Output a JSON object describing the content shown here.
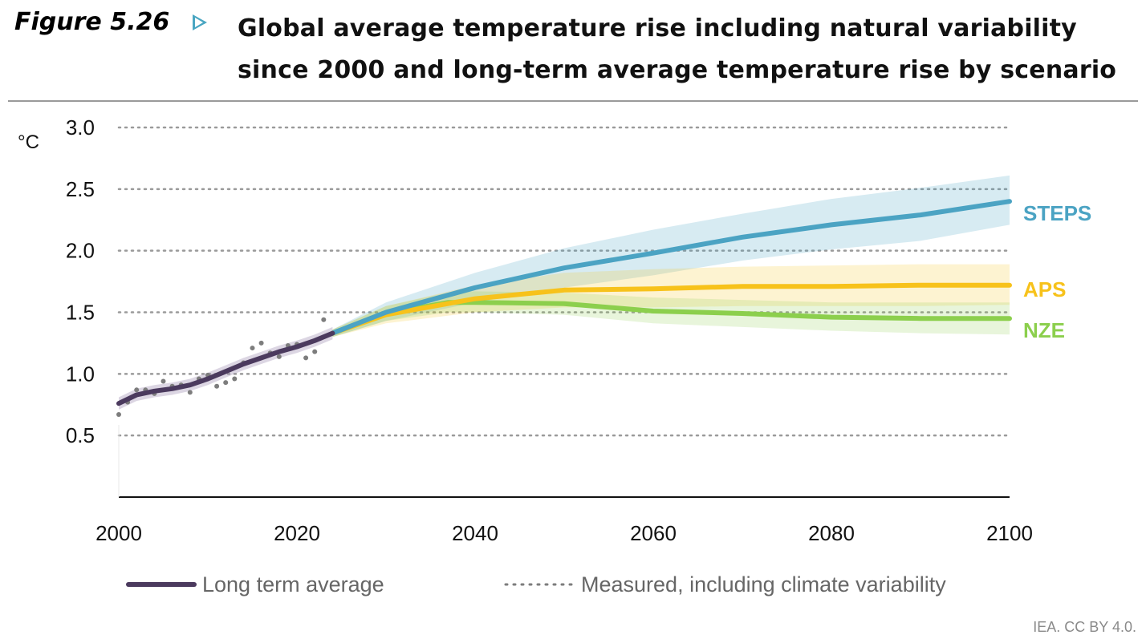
{
  "figure_label": "Figure 5.26",
  "title": "Global average temperature rise including natural variability since 2000 and long-term average temperature rise by scenario",
  "credit": "IEA. CC BY 4.0.",
  "colors": {
    "long_term": "#4b3a5e",
    "measured": "#7d7d7d",
    "STEPS": "#4ba3c3",
    "APS": "#f7c21b",
    "NZE": "#8ccf4d",
    "grid": "#9a9a9a",
    "accent": "#4aa6c2"
  },
  "chart_data": {
    "type": "line",
    "title": "Global average temperature rise including natural variability since 2000 and long-term average temperature rise by scenario",
    "ylabel": "°C",
    "xlabel": "",
    "xlim": [
      2000,
      2100
    ],
    "ylim": [
      0,
      3.0
    ],
    "x_ticks": [
      2000,
      2020,
      2040,
      2060,
      2080,
      2100
    ],
    "y_ticks": [
      0.5,
      1.0,
      1.5,
      2.0,
      2.5,
      3.0
    ],
    "y_tick_labels": [
      "0.5",
      "1.0",
      "1.5",
      "2.0",
      "2.5",
      "3.0"
    ],
    "grid": "horizontal dotted",
    "legend": [
      {
        "label": "Long term average",
        "style": "solid"
      },
      {
        "label": "Measured, including climate variability",
        "style": "dotted"
      }
    ],
    "long_term_average": {
      "x": [
        2000,
        2002,
        2004,
        2006,
        2008,
        2010,
        2012,
        2014,
        2016,
        2018,
        2020,
        2022,
        2024
      ],
      "y": [
        0.76,
        0.83,
        0.86,
        0.88,
        0.91,
        0.96,
        1.02,
        1.08,
        1.13,
        1.18,
        1.22,
        1.27,
        1.33
      ]
    },
    "measured": {
      "x": [
        2000,
        2001,
        2002,
        2003,
        2004,
        2005,
        2006,
        2007,
        2008,
        2009,
        2010,
        2011,
        2012,
        2013,
        2014,
        2015,
        2016,
        2017,
        2018,
        2019,
        2020,
        2021,
        2022,
        2023
      ],
      "y": [
        0.67,
        0.77,
        0.87,
        0.87,
        0.84,
        0.94,
        0.9,
        0.91,
        0.85,
        0.96,
        0.99,
        0.9,
        0.93,
        0.96,
        1.09,
        1.21,
        1.25,
        1.17,
        1.14,
        1.23,
        1.24,
        1.13,
        1.18,
        1.44
      ]
    },
    "series": [
      {
        "name": "STEPS",
        "x": [
          2024,
          2030,
          2040,
          2050,
          2060,
          2070,
          2080,
          2090,
          2100
        ],
        "y": [
          1.33,
          1.5,
          1.7,
          1.86,
          1.98,
          2.11,
          2.21,
          2.29,
          2.4
        ],
        "band_upper": [
          1.36,
          1.58,
          1.82,
          2.02,
          2.17,
          2.3,
          2.42,
          2.51,
          2.61
        ],
        "band_lower": [
          1.3,
          1.43,
          1.58,
          1.7,
          1.8,
          1.92,
          2.01,
          2.08,
          2.21
        ]
      },
      {
        "name": "APS",
        "x": [
          2024,
          2030,
          2040,
          2050,
          2060,
          2070,
          2080,
          2090,
          2100
        ],
        "y": [
          1.33,
          1.48,
          1.61,
          1.68,
          1.69,
          1.71,
          1.71,
          1.72,
          1.72
        ],
        "band_upper": [
          1.36,
          1.55,
          1.72,
          1.82,
          1.85,
          1.87,
          1.88,
          1.89,
          1.89
        ],
        "band_lower": [
          1.3,
          1.41,
          1.5,
          1.54,
          1.54,
          1.55,
          1.55,
          1.55,
          1.56
        ]
      },
      {
        "name": "NZE",
        "x": [
          2024,
          2030,
          2037,
          2040,
          2050,
          2060,
          2070,
          2080,
          2090,
          2100
        ],
        "y": [
          1.33,
          1.49,
          1.58,
          1.58,
          1.57,
          1.51,
          1.49,
          1.46,
          1.45,
          1.45
        ],
        "band_upper": [
          1.36,
          1.55,
          1.66,
          1.67,
          1.66,
          1.62,
          1.6,
          1.58,
          1.58,
          1.58
        ],
        "band_lower": [
          1.3,
          1.43,
          1.5,
          1.5,
          1.48,
          1.41,
          1.38,
          1.35,
          1.33,
          1.32
        ]
      }
    ]
  }
}
